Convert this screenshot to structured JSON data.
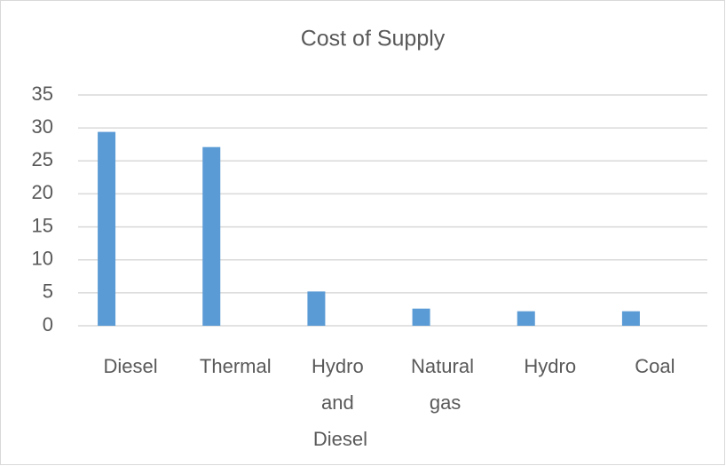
{
  "chart_data": {
    "type": "bar",
    "title": "Cost of Supply",
    "categories": [
      "Diesel",
      "Thermal",
      "Hydro and Diesel",
      "Natural gas",
      "Hydro",
      "Coal"
    ],
    "values": [
      29.4,
      27.1,
      5.2,
      2.6,
      2.2,
      2.2
    ],
    "color": "#5b9bd5",
    "ylim": [
      0,
      35
    ],
    "yticks": [
      0,
      5,
      10,
      15,
      20,
      25,
      30,
      35
    ],
    "grid": true
  }
}
